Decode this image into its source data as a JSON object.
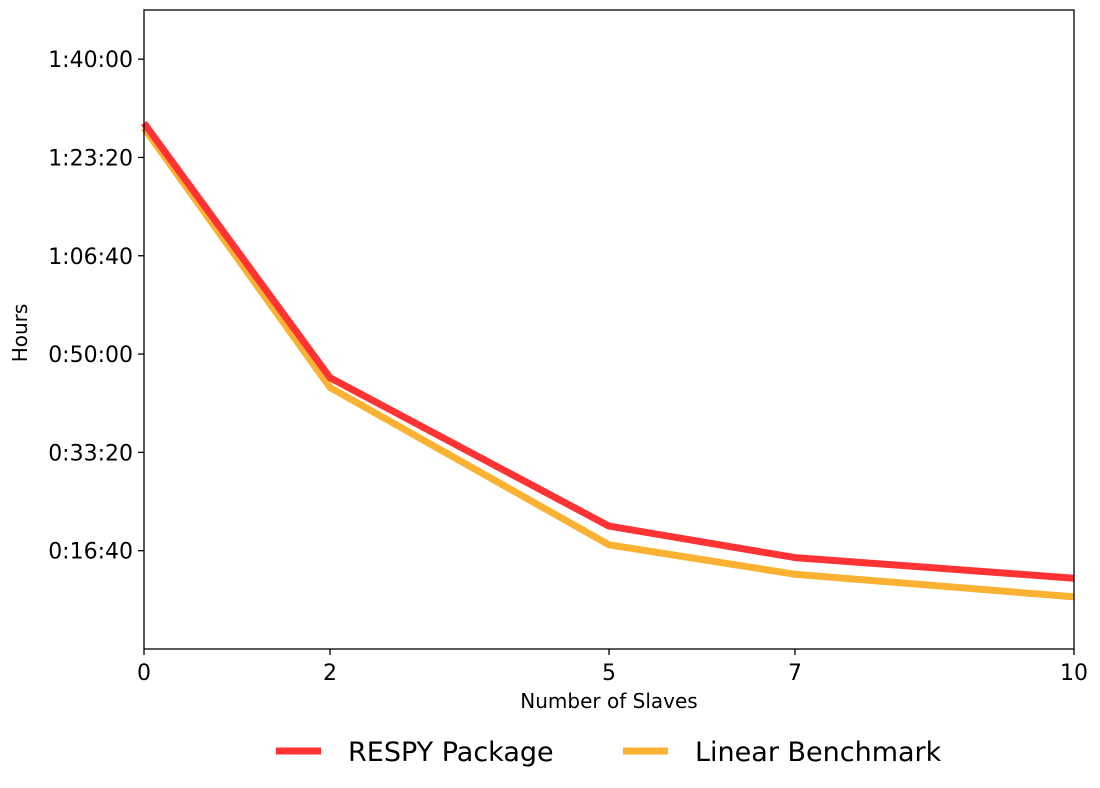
{
  "chart_data": {
    "type": "line",
    "xlabel": "Number of Slaves",
    "ylabel": "Hours",
    "x": [
      0,
      2,
      5,
      7,
      10
    ],
    "xlim": [
      0,
      10
    ],
    "x_ticks": [
      0,
      2,
      5,
      7,
      10
    ],
    "x_tick_labels": [
      "0",
      "2",
      "5",
      "7",
      "10"
    ],
    "ylim_seconds": [
      0,
      6500
    ],
    "y_ticks_seconds": [
      1000,
      2000,
      3000,
      4000,
      5000,
      6000
    ],
    "y_tick_labels": [
      "0:16:40",
      "0:33:20",
      "0:50:00",
      "1:06:40",
      "1:23:20",
      "1:40:00"
    ],
    "grid": false,
    "legend_placement": "bottom-center",
    "series": [
      {
        "name": "RESPY Package",
        "color": "#ff3333",
        "values_seconds": [
          5350,
          2760,
          1250,
          930,
          720
        ]
      },
      {
        "name": "Linear Benchmark",
        "color": "#fbb233",
        "values_seconds": [
          5300,
          2660,
          1060,
          760,
          530
        ]
      }
    ]
  }
}
